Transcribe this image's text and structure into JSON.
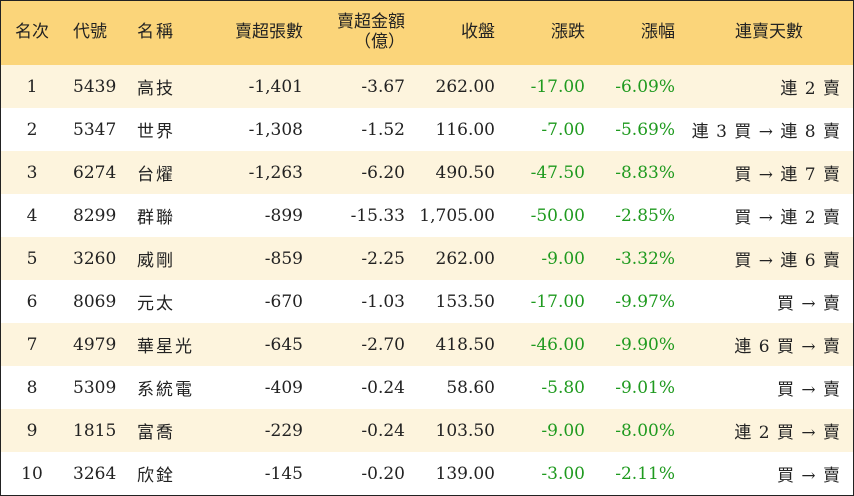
{
  "colors": {
    "header_bg": "#fbd57a",
    "odd_row_bg": "#fdf4dd",
    "even_row_bg": "#ffffff",
    "change_text": "#1f9a1f"
  },
  "headers": {
    "rank": "名次",
    "code": "代號",
    "name": "名稱",
    "net_sell_lots": "賣超張數",
    "net_sell_amount_line1": "賣超金額",
    "net_sell_amount_line2": "（億）",
    "close": "收盤",
    "change": "漲跌",
    "change_pct": "漲幅",
    "consecutive_days": "連賣天數"
  },
  "rows": [
    {
      "rank": "1",
      "code": "5439",
      "name": "高技",
      "net_sell_lots": "-1,401",
      "net_sell_amount": "-3.67",
      "close": "262.00",
      "change": "-17.00",
      "change_pct": "-6.09%",
      "consecutive_days": "連 2 賣"
    },
    {
      "rank": "2",
      "code": "5347",
      "name": "世界",
      "net_sell_lots": "-1,308",
      "net_sell_amount": "-1.52",
      "close": "116.00",
      "change": "-7.00",
      "change_pct": "-5.69%",
      "consecutive_days": "連 3 買 → 連 8 賣"
    },
    {
      "rank": "3",
      "code": "6274",
      "name": "台燿",
      "net_sell_lots": "-1,263",
      "net_sell_amount": "-6.20",
      "close": "490.50",
      "change": "-47.50",
      "change_pct": "-8.83%",
      "consecutive_days": "買 → 連 7 賣"
    },
    {
      "rank": "4",
      "code": "8299",
      "name": "群聯",
      "net_sell_lots": "-899",
      "net_sell_amount": "-15.33",
      "close": "1,705.00",
      "change": "-50.00",
      "change_pct": "-2.85%",
      "consecutive_days": "買 → 連 2 賣"
    },
    {
      "rank": "5",
      "code": "3260",
      "name": "威剛",
      "net_sell_lots": "-859",
      "net_sell_amount": "-2.25",
      "close": "262.00",
      "change": "-9.00",
      "change_pct": "-3.32%",
      "consecutive_days": "買 → 連 6 賣"
    },
    {
      "rank": "6",
      "code": "8069",
      "name": "元太",
      "net_sell_lots": "-670",
      "net_sell_amount": "-1.03",
      "close": "153.50",
      "change": "-17.00",
      "change_pct": "-9.97%",
      "consecutive_days": "買 → 賣"
    },
    {
      "rank": "7",
      "code": "4979",
      "name": "華星光",
      "net_sell_lots": "-645",
      "net_sell_amount": "-2.70",
      "close": "418.50",
      "change": "-46.00",
      "change_pct": "-9.90%",
      "consecutive_days": "連 6 買 → 賣"
    },
    {
      "rank": "8",
      "code": "5309",
      "name": "系統電",
      "net_sell_lots": "-409",
      "net_sell_amount": "-0.24",
      "close": "58.60",
      "change": "-5.80",
      "change_pct": "-9.01%",
      "consecutive_days": "買 → 賣"
    },
    {
      "rank": "9",
      "code": "1815",
      "name": "富喬",
      "net_sell_lots": "-229",
      "net_sell_amount": "-0.24",
      "close": "103.50",
      "change": "-9.00",
      "change_pct": "-8.00%",
      "consecutive_days": "連 2 買 → 賣"
    },
    {
      "rank": "10",
      "code": "3264",
      "name": "欣銓",
      "net_sell_lots": "-145",
      "net_sell_amount": "-0.20",
      "close": "139.00",
      "change": "-3.00",
      "change_pct": "-2.11%",
      "consecutive_days": "買 → 賣"
    }
  ]
}
